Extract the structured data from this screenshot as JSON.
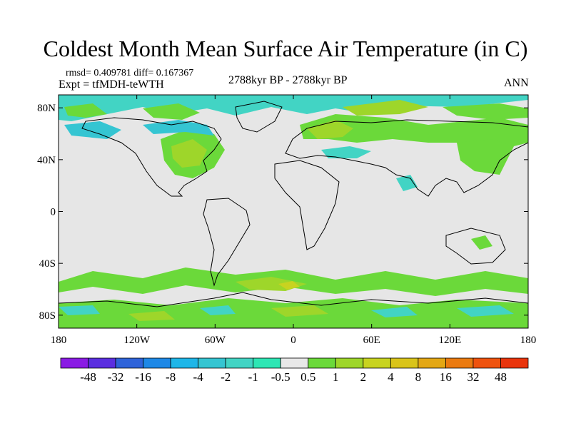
{
  "title": "Coldest Month Mean Surface Air Temperature (in C)",
  "stats": "rmsd= 0.409781 diff= 0.167367",
  "experiment": "Expt = tfMDH-teWTH",
  "period": "2788kyr BP - 2788kyr BP",
  "season": "ANN",
  "axes": {
    "lat_labels": [
      "80N",
      "40N",
      "0",
      "40S",
      "80S"
    ],
    "lon_labels": [
      "180",
      "120W",
      "60W",
      "0",
      "60E",
      "120E",
      "180"
    ]
  },
  "map": {
    "background_color": "#e6e6e6",
    "coastline_color": "#000000",
    "anomaly_regions": [
      {
        "label": "Arctic margin",
        "value_class": "-1"
      },
      {
        "label": "North America",
        "value_class": "1"
      },
      {
        "label": "Northern Europe / Siberia",
        "value_class": "1"
      },
      {
        "label": "East Asia",
        "value_class": "1"
      },
      {
        "label": "Southern Ocean band",
        "value_class": "1"
      },
      {
        "label": "Antarctica",
        "value_class": "1"
      }
    ]
  },
  "colorbar": {
    "colors": [
      "#8a1be4",
      "#5b2ee0",
      "#2f63d9",
      "#1e88e6",
      "#1eb6e8",
      "#35c5d2",
      "#42d4c4",
      "#2ee6b4",
      "#e8e8e8",
      "#6bd93a",
      "#9ed62a",
      "#c8d320",
      "#d9c41a",
      "#e3a714",
      "#ea7a10",
      "#ee520e",
      "#e9340c"
    ],
    "labels": [
      "-48",
      "-32",
      "-16",
      "-8",
      "-4",
      "-2",
      "-1",
      "-0.5",
      "0.5",
      "1",
      "2",
      "4",
      "8",
      "16",
      "32",
      "48"
    ]
  }
}
